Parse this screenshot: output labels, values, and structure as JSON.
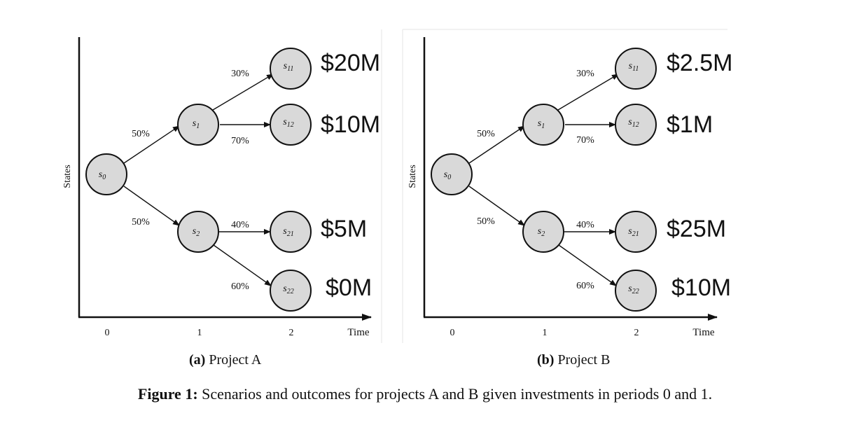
{
  "panels": [
    {
      "id": "a",
      "sub_label": "(a)",
      "sub_title": "Project A",
      "y_axis_label": "States",
      "x_axis_label": "Time",
      "x_ticks": [
        "0",
        "1",
        "2"
      ],
      "nodes": {
        "s0": {
          "base": "s",
          "sub": "0"
        },
        "s1": {
          "base": "s",
          "sub": "1"
        },
        "s2": {
          "base": "s",
          "sub": "2"
        },
        "s11": {
          "base": "s",
          "sub": "11"
        },
        "s12": {
          "base": "s",
          "sub": "12"
        },
        "s21": {
          "base": "s",
          "sub": "21"
        },
        "s22": {
          "base": "s",
          "sub": "22"
        }
      },
      "edges": {
        "s0_s1": "50%",
        "s0_s2": "50%",
        "s1_s11": "30%",
        "s1_s12": "70%",
        "s2_s21": "40%",
        "s2_s22": "60%"
      },
      "outcomes": {
        "s11": "$20M",
        "s12": "$10M",
        "s21": "$5M",
        "s22": "$0M"
      }
    },
    {
      "id": "b",
      "sub_label": "(b)",
      "sub_title": "Project B",
      "y_axis_label": "States",
      "x_axis_label": "Time",
      "x_ticks": [
        "0",
        "1",
        "2"
      ],
      "nodes": {
        "s0": {
          "base": "s",
          "sub": "0"
        },
        "s1": {
          "base": "s",
          "sub": "1"
        },
        "s2": {
          "base": "s",
          "sub": "2"
        },
        "s11": {
          "base": "s",
          "sub": "11"
        },
        "s12": {
          "base": "s",
          "sub": "12"
        },
        "s21": {
          "base": "s",
          "sub": "21"
        },
        "s22": {
          "base": "s",
          "sub": "22"
        }
      },
      "edges": {
        "s0_s1": "50%",
        "s0_s2": "50%",
        "s1_s11": "30%",
        "s1_s12": "70%",
        "s2_s21": "40%",
        "s2_s22": "60%"
      },
      "outcomes": {
        "s11": "$2.5M",
        "s12": "$1M",
        "s21": "$25M",
        "s22": "$10M"
      }
    }
  ],
  "figure_caption": {
    "label": "Figure 1:",
    "text": "Scenarios and outcomes for projects A and B given investments in periods 0 and 1."
  },
  "colors": {
    "node_fill": "#d9d9d9",
    "stroke": "#111111",
    "panel_border": "#e6e6e6"
  }
}
